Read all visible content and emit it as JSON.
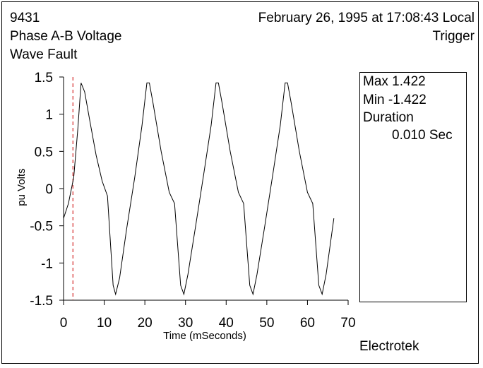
{
  "header": {
    "id": "9431",
    "title": "Phase A-B Voltage",
    "event_type": "Wave Fault",
    "timestamp": "February 26, 1995 at 17:08:43 Local",
    "trigger_label": "Trigger"
  },
  "info": {
    "max_label": "Max 1.422",
    "min_label": "Min  -1.422",
    "duration_label": "Duration",
    "duration_value": "0.010 Sec"
  },
  "brand": "Electrotek",
  "colors": {
    "trace": "#000000",
    "trigger_line": "#cc0000",
    "axis": "#000000"
  },
  "chart_data": {
    "type": "line",
    "title": "",
    "xlabel": "Time (mSeconds)",
    "ylabel": "pu Volts",
    "xlim": [
      0,
      70
    ],
    "ylim": [
      -1.5,
      1.5
    ],
    "xticks": [
      0,
      10,
      20,
      30,
      40,
      50,
      60,
      70
    ],
    "xtick_labels": [
      "0",
      "10",
      "20",
      "30",
      "40",
      "50",
      "60",
      "70"
    ],
    "yticks": [
      1.5,
      1,
      0.5,
      0,
      -0.5,
      -1,
      -1.5
    ],
    "ytick_labels": [
      "1.5",
      "1",
      "0.5",
      "0",
      "-0.5",
      "-1",
      "-1.5"
    ],
    "grid": false,
    "trigger_time_ms": 2.3,
    "series": [
      {
        "x": [
          0,
          1.2,
          2.5,
          3.5,
          4.3,
          5.2,
          6.5,
          8,
          9.5,
          10.8,
          12.2,
          12.8,
          13.8,
          15.5,
          17.5,
          19.3,
          20.5,
          21.1,
          22,
          24,
          26,
          27.3,
          28.8,
          29.6,
          30.6,
          32.5,
          34.5,
          36.3,
          37.5,
          38.1,
          39,
          41,
          43,
          44.3,
          45.8,
          46.6,
          47.6,
          49.5,
          51.5,
          53.3,
          54.5,
          55.1,
          56,
          58,
          60,
          61.3,
          62.8,
          63.6,
          64.6,
          66.5
        ],
        "y": [
          -0.4,
          -0.2,
          0.15,
          0.8,
          1.42,
          1.3,
          0.9,
          0.45,
          0.1,
          -0.1,
          -1.3,
          -1.42,
          -1.2,
          -0.55,
          0.15,
          0.85,
          1.42,
          1.42,
          1.15,
          0.5,
          -0.05,
          -0.2,
          -1.3,
          -1.42,
          -1.15,
          -0.5,
          0.2,
          0.85,
          1.42,
          1.42,
          1.15,
          0.5,
          -0.05,
          -0.2,
          -1.3,
          -1.42,
          -1.15,
          -0.5,
          0.2,
          0.85,
          1.42,
          1.42,
          1.15,
          0.5,
          -0.05,
          -0.2,
          -1.3,
          -1.42,
          -1.15,
          -0.4
        ]
      }
    ]
  }
}
